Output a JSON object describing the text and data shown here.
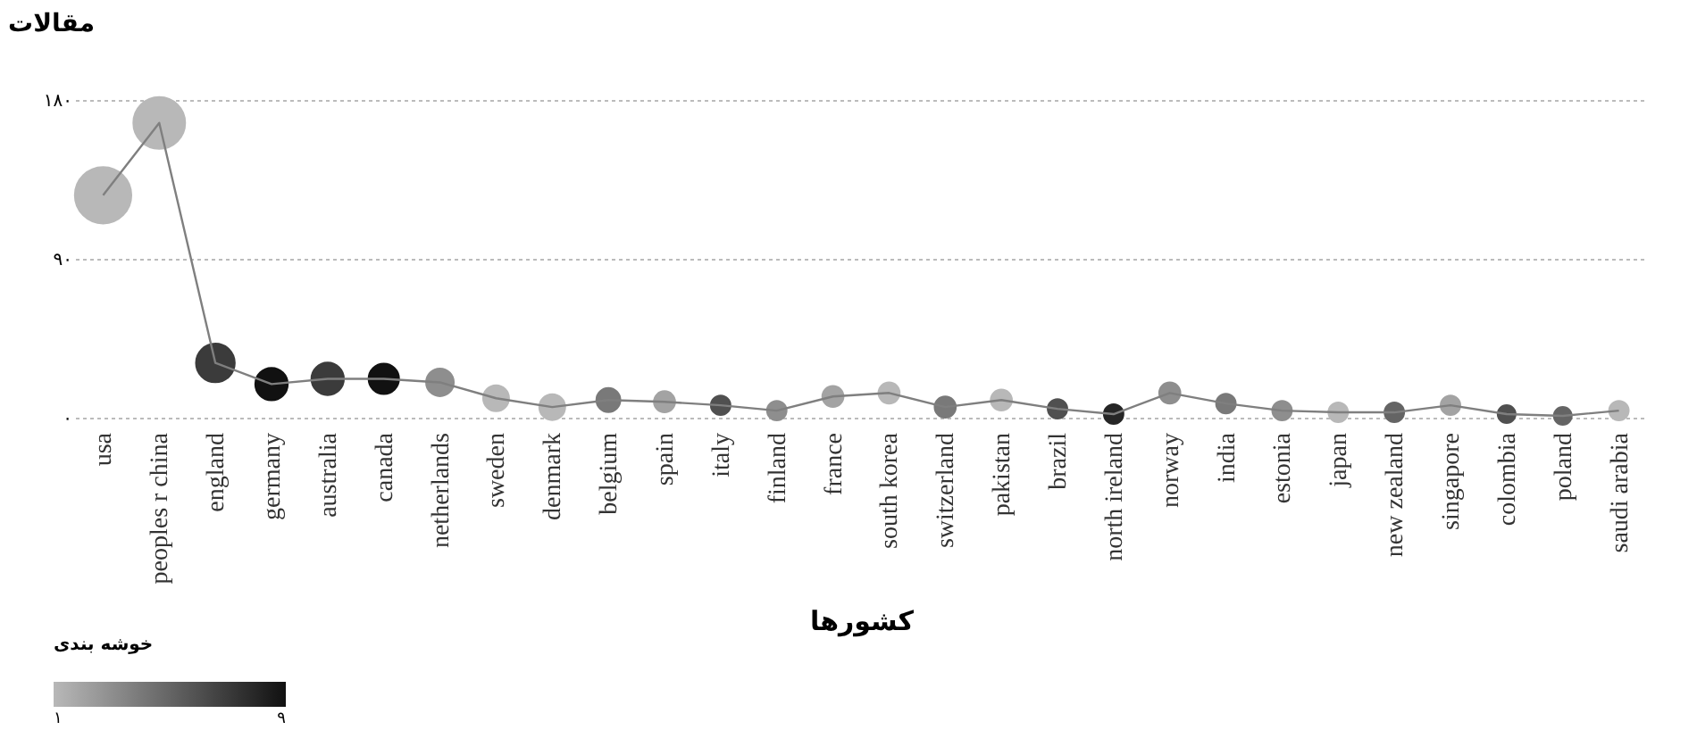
{
  "chart_data": {
    "type": "bubble",
    "xlabel": "کشورها",
    "ylabel": "مقالات",
    "clabel": "خوشه بندی",
    "categories": [
      "usa",
      "peoples r china",
      "england",
      "germany",
      "australia",
      "canada",
      "netherlands",
      "sweden",
      "denmark",
      "belgium",
      "spain",
      "italy",
      "finland",
      "france",
      "south korea",
      "switzerland",
      "pakistan",
      "brazil",
      "north ireland",
      "norway",
      "india",
      "estonia",
      "japan",
      "new zealand",
      "singapore",
      "colombia",
      "poland",
      "saudi arabia"
    ],
    "series": [
      {
        "type": "line",
        "color": "#7f7f7f",
        "values": [
          126,
          167,
          31,
          19,
          22,
          22,
          20,
          11,
          6,
          10,
          9,
          7,
          4,
          12,
          14,
          6,
          10,
          5,
          2,
          14,
          8,
          4,
          3,
          3,
          7,
          2,
          1,
          4
        ]
      },
      {
        "values": [
          126,
          167,
          31,
          19,
          22,
          22,
          20,
          11,
          6,
          10,
          9,
          7,
          4,
          12,
          14,
          6,
          10,
          5,
          2,
          14,
          8,
          4,
          3,
          3,
          7,
          2,
          1,
          4
        ],
        "sizes": [
          1,
          0.84,
          0.47,
          0.33,
          0.33,
          0.29,
          0.24,
          0.21,
          0.21,
          0.18,
          0.14,
          0.12,
          0.12,
          0.14,
          0.14,
          0.14,
          0.14,
          0.12,
          0.12,
          0.14,
          0.12,
          0.12,
          0.12,
          0.12,
          0.12,
          0.1,
          0.1,
          0.12
        ],
        "cvalues": [
          1,
          1,
          7,
          9,
          7,
          9,
          3,
          1,
          1,
          4,
          2,
          6,
          3,
          2,
          1,
          4,
          1,
          6,
          8,
          3,
          4,
          3,
          1,
          5,
          2,
          6,
          5,
          1
        ],
        "colors": [
          "#b8b8b8",
          "#b8b8b8",
          "#3b3b3b",
          "#111111",
          "#3b3b3b",
          "#111111",
          "#8e8e8e",
          "#b8b8b8",
          "#b8b8b8",
          "#797979",
          "#a3a3a3",
          "#505050",
          "#8e8e8e",
          "#a3a3a3",
          "#b8b8b8",
          "#797979",
          "#b8b8b8",
          "#505050",
          "#262626",
          "#8e8e8e",
          "#797979",
          "#8e8e8e",
          "#b8b8b8",
          "#646464",
          "#a3a3a3",
          "#505050",
          "#646464",
          "#b8b8b8"
        ]
      }
    ],
    "ylim": [
      0,
      180
    ],
    "yticks": [
      {
        "value": 0,
        "label": "۰"
      },
      {
        "value": 90,
        "label": "۹۰"
      },
      {
        "value": 180,
        "label": "۱۸۰"
      }
    ],
    "clim": [
      1,
      9
    ],
    "cticks": [
      {
        "value": 1,
        "label": "۱"
      },
      {
        "value": 9,
        "label": "۹"
      }
    ],
    "grid": "y"
  }
}
